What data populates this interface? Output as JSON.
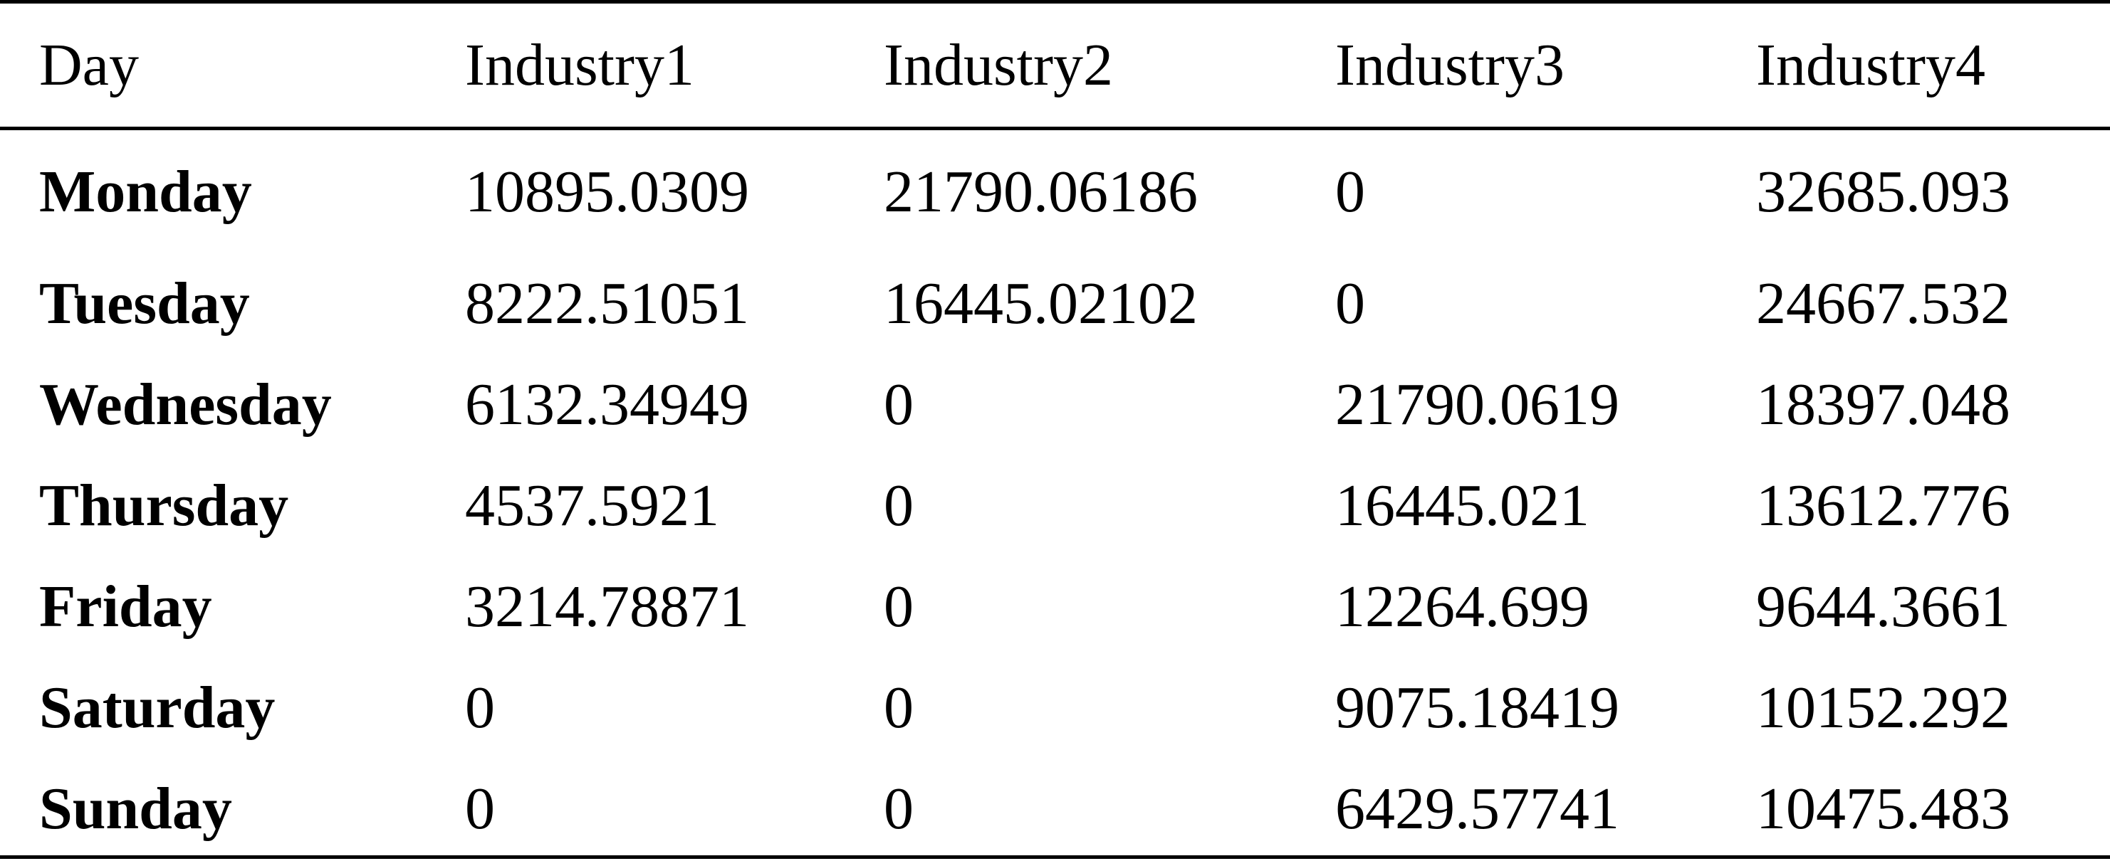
{
  "table": {
    "columns": [
      "Day",
      "Industry1",
      "Industry2",
      "Industry3",
      "Industry4"
    ],
    "rows": [
      {
        "day": "Monday",
        "cells": [
          "10895.0309",
          "21790.06186",
          "0",
          "32685.093"
        ]
      },
      {
        "day": "Tuesday",
        "cells": [
          "8222.51051",
          "16445.02102",
          "0",
          "24667.532"
        ]
      },
      {
        "day": "Wednesday",
        "cells": [
          "6132.34949",
          "0",
          "21790.0619",
          "18397.048"
        ]
      },
      {
        "day": "Thursday",
        "cells": [
          "4537.5921",
          "0",
          "16445.021",
          "13612.776"
        ]
      },
      {
        "day": "Friday",
        "cells": [
          "3214.78871",
          "0",
          "12264.699",
          "9644.3661"
        ]
      },
      {
        "day": "Saturday",
        "cells": [
          "0",
          "0",
          "9075.18419",
          "10152.292"
        ]
      },
      {
        "day": "Sunday",
        "cells": [
          "0",
          "0",
          "6429.57741",
          "10475.483"
        ]
      }
    ]
  }
}
